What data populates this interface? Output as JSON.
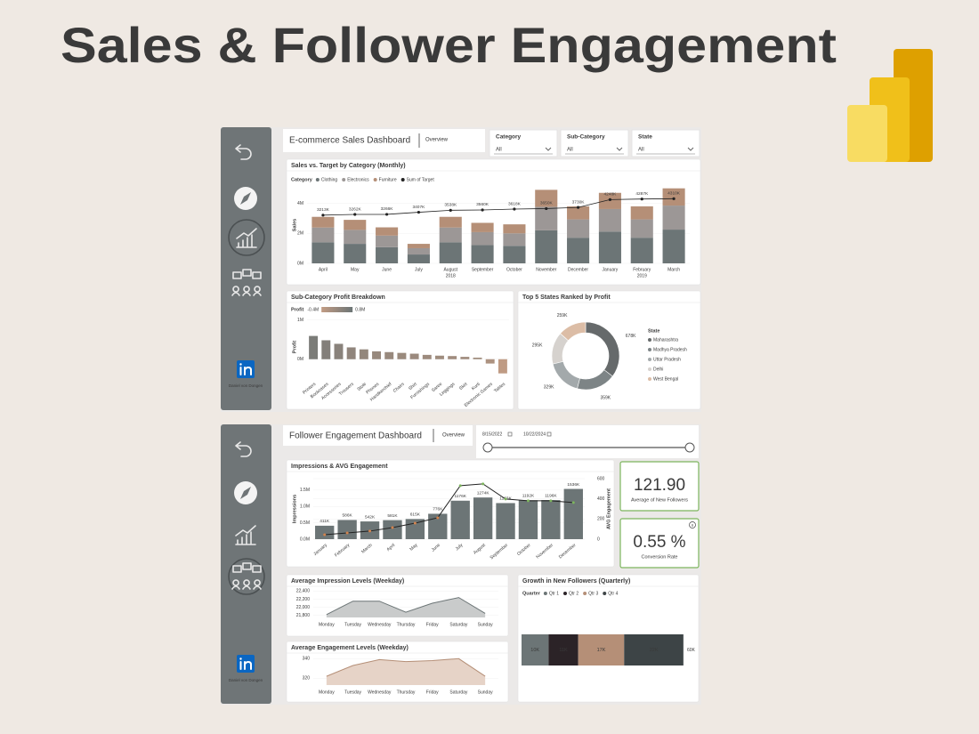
{
  "header": {
    "title": "Sales & Follower Engagement"
  },
  "sales_dashboard": {
    "title": "E-commerce Sales Dashboard",
    "page": "Overview",
    "slicers": [
      {
        "label": "Category",
        "value": "All"
      },
      {
        "label": "Sub-Category",
        "value": "All"
      },
      {
        "label": "State",
        "value": "All"
      }
    ],
    "profile_name": "Daniel von Dongen"
  },
  "engagement_dashboard": {
    "title": "Follower Engagement Dashboard",
    "page": "Overview",
    "date_range": [
      "8/15/2022",
      "10/22/2024"
    ],
    "profile_name": "Daniel von Dongen",
    "kpis": [
      {
        "value": "121.90",
        "label": "Average of New Followers"
      },
      {
        "value": "0.55 %",
        "label": "Conversion Rate"
      }
    ]
  },
  "chart_data": [
    {
      "type": "bar",
      "stacked": true,
      "title": "Sales vs. Target by Category (Monthly)",
      "legend_title": "Category",
      "categories": [
        "April",
        "May",
        "June",
        "July",
        "August",
        "September",
        "October",
        "November",
        "December",
        "January",
        "February",
        "March"
      ],
      "x_sublabels": [
        null,
        null,
        null,
        null,
        "2018",
        null,
        null,
        null,
        null,
        null,
        "2019",
        null
      ],
      "y_label": "Sales",
      "ylim": [
        0,
        5100000
      ],
      "yticks": [
        {
          "value": 0,
          "label": "0M"
        },
        {
          "value": 2000000,
          "label": "2M"
        },
        {
          "value": 4000000,
          "label": "4M"
        }
      ],
      "series": [
        {
          "name": "Clothing",
          "color": "#6c7576",
          "values": [
            1400000,
            1300000,
            1080000,
            590000,
            1400000,
            1220000,
            1170000,
            2200000,
            1710000,
            2120000,
            1710000,
            2250000
          ]
        },
        {
          "name": "Electronics",
          "color": "#9c9796",
          "values": [
            990000,
            930000,
            770000,
            420000,
            990000,
            860000,
            830000,
            1570000,
            1220000,
            1500000,
            1220000,
            1600000
          ]
        },
        {
          "name": "Furniture",
          "color": "#b58f77",
          "values": [
            710000,
            670000,
            550000,
            290000,
            710000,
            620000,
            600000,
            1130000,
            870000,
            1080000,
            870000,
            1150000
          ]
        },
        {
          "name": "Sum of Target",
          "type": "line",
          "color": "#222222",
          "values": [
            3213000,
            3262000,
            3266000,
            3407000,
            3538000,
            3560000,
            3618000,
            3650000,
            3730000,
            4248000,
            4287000,
            4310000
          ],
          "value_labels": [
            "3213K",
            "3262K",
            "3266K",
            "3407K",
            "3538K",
            "3560K",
            "3618K",
            "3650K",
            "3730K",
            "4248K",
            "4287K",
            "4310K"
          ]
        }
      ]
    },
    {
      "type": "bar",
      "title": "Sub-Category Profit Breakdown",
      "legend_title": "Profit",
      "color_scale": {
        "min": {
          "value": -400000,
          "label": "-0.4M"
        },
        "max": {
          "value": 800000,
          "label": "0.8M"
        },
        "colors": [
          "#c29c84",
          "#6c7576"
        ]
      },
      "categories": [
        "Printers",
        "Bookcases",
        "Accessories",
        "Trousers",
        "Stole",
        "Phones",
        "Handkerchief",
        "Chairs",
        "Shirt",
        "Furnishings",
        "Saree",
        "Leggings",
        "Skirt",
        "Kurti",
        "Electronic Games",
        "Tables"
      ],
      "values": [
        590000,
        480000,
        390000,
        300000,
        250000,
        200000,
        180000,
        160000,
        140000,
        110000,
        90000,
        80000,
        60000,
        40000,
        -110000,
        -360000
      ],
      "y_label": "Profit",
      "ylim": [
        -480000,
        1100000
      ],
      "yticks": [
        {
          "value": 0,
          "label": "0M"
        },
        {
          "value": 1000000,
          "label": "1M"
        }
      ]
    },
    {
      "type": "donut",
      "title": "Top 5 States Ranked by Profit",
      "legend_title": "State",
      "categories": [
        "Maharashtra",
        "Madhya Pradesh",
        "Uttar Pradesh",
        "Delhi",
        "West Bengal"
      ],
      "values": [
        678000,
        359000,
        329000,
        295000,
        259000
      ],
      "value_labels": [
        "678K",
        "359K",
        "329K",
        "295K",
        "259K"
      ],
      "colors": [
        "#666a6b",
        "#7d8486",
        "#a3a9ab",
        "#d6d2ce",
        "#dcbda6"
      ]
    },
    {
      "type": "combo",
      "title": "Impressions & AVG Engagement",
      "categories": [
        "January",
        "February",
        "March",
        "April",
        "May",
        "June",
        "July",
        "August",
        "September",
        "October",
        "November",
        "December"
      ],
      "y_label": "Impressions",
      "y2_label": "AVG Engagement",
      "ylim": [
        0,
        1850000
      ],
      "yticks": [
        {
          "value": 0,
          "label": "0.0M"
        },
        {
          "value": 500000,
          "label": "0.5M"
        },
        {
          "value": 1000000,
          "label": "1.0M"
        },
        {
          "value": 1500000,
          "label": "1.5M"
        }
      ],
      "y2lim": [
        0,
        600
      ],
      "y2ticks": [
        0,
        200,
        400,
        600
      ],
      "series": [
        {
          "type": "bar",
          "color": "#6c7576",
          "values": [
            411000,
            586000,
            542000,
            581000,
            615000,
            776000,
            1176000,
            1274000,
            1103000,
            1192000,
            1196000,
            1536000
          ],
          "value_labels": [
            "411K",
            "586K",
            "542K",
            "581K",
            "615K",
            "776K",
            "1176K",
            "1274K",
            "1103K",
            "1192K",
            "1196K",
            "1536K"
          ]
        },
        {
          "type": "line",
          "axis": "y2",
          "color": "#222222",
          "values": [
            44,
            62,
            80,
            115,
            159,
            212,
            531,
            548,
            398,
            380,
            380,
            363
          ]
        }
      ]
    },
    {
      "type": "area",
      "title": "Average Impression Levels (Weekday)",
      "categories": [
        "Monday",
        "Tuesday",
        "Wednesday",
        "Thursday",
        "Friday",
        "Saturday",
        "Sunday"
      ],
      "values": [
        21820,
        22150,
        22150,
        21880,
        22100,
        22240,
        21850
      ],
      "color": "#6c7576",
      "fill": "#c9cbcb",
      "ylim": [
        21750,
        22450
      ],
      "yticks": [
        {
          "value": 21800,
          "label": "21,800"
        },
        {
          "value": 22000,
          "label": "22,000"
        },
        {
          "value": 22200,
          "label": "22,200"
        },
        {
          "value": 22400,
          "label": "22,400"
        }
      ]
    },
    {
      "type": "area",
      "title": "Average Engagement Levels (Weekday)",
      "categories": [
        "Monday",
        "Tuesday",
        "Wednesday",
        "Thursday",
        "Friday",
        "Saturday",
        "Sunday"
      ],
      "values": [
        322,
        333,
        339,
        337,
        338,
        340,
        322
      ],
      "color": "#b58f77",
      "fill": "#e6d3c7",
      "ylim": [
        313,
        343
      ],
      "yticks": [
        320,
        340
      ]
    },
    {
      "type": "bar",
      "orientation": "horizontal",
      "stacked": true,
      "title": "Growth in New Followers (Quarterly)",
      "legend_title": "Quarter",
      "xlim": [
        0,
        60000
      ],
      "xticks": [
        {
          "value": 60000,
          "label": "60K"
        }
      ],
      "series": [
        {
          "name": "Qtr 1",
          "color": "#6c7576",
          "values": [
            10000
          ],
          "value_labels": [
            "10K"
          ]
        },
        {
          "name": "Qtr 2",
          "color": "#2b2327",
          "values": [
            11000
          ],
          "value_labels": [
            "11K"
          ]
        },
        {
          "name": "Qtr 3",
          "color": "#b58f77",
          "values": [
            17000
          ],
          "value_labels": [
            "17K"
          ]
        },
        {
          "name": "Qtr 4",
          "color": "#3d4446",
          "values": [
            22000
          ],
          "value_labels": [
            "22K"
          ]
        }
      ]
    }
  ]
}
